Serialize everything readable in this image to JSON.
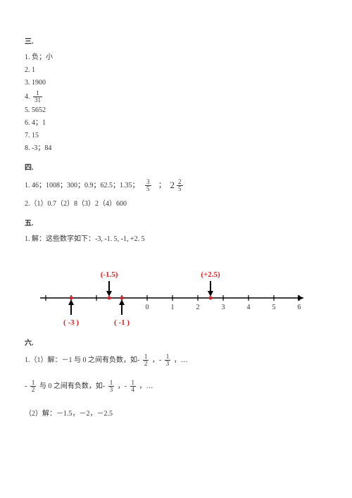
{
  "section3": {
    "title": "三.",
    "items": [
      "1. 负；小",
      "2. 1",
      "3. 1900",
      "4.",
      "5. 5652",
      "6. 4；1",
      "7. 15",
      "8. -3；84"
    ],
    "frac4": {
      "num": "1",
      "den": "31"
    }
  },
  "section4": {
    "title": "四.",
    "line1_pre": "1. 46；1008；300；0.9；62.5；1.35；",
    "frac1": {
      "num": "3",
      "den": "5"
    },
    "sep": "；",
    "mixed": {
      "whole": "2",
      "num": "2",
      "den": "5"
    },
    "line2": "2.（1）0.7（2）8（3）2（4）600"
  },
  "section5": {
    "title": "五.",
    "line1": "1. 解：这些数字如下：-3, -1. 5, -1, +2. 5",
    "numberline": {
      "min": -4,
      "max": 6,
      "ticks": [
        -4,
        -3,
        -2,
        -1,
        0,
        1,
        2,
        3,
        4,
        5,
        6
      ],
      "top_markers": [
        {
          "label": "(-1.5)",
          "value": -1.5,
          "color": "#e02020"
        },
        {
          "label": "(+2.5)",
          "value": 2.5,
          "color": "#e02020"
        }
      ],
      "bottom_markers": [
        {
          "label": "( -3 )",
          "value": -3,
          "color": "#e02020"
        },
        {
          "label": "( -1 )",
          "value": -1,
          "color": "#e02020"
        }
      ],
      "axis_color": "#000",
      "tick_labels": [
        "",
        "",
        "",
        "",
        "0",
        "1",
        "2",
        "3",
        "4",
        "5",
        "6"
      ]
    }
  },
  "section6": {
    "title": "六.",
    "q1_pre": "1.（1）解：－1 与 0 之间有负数，如-",
    "q1_f1": {
      "num": "1",
      "den": "2"
    },
    "q1_mid1": "，-",
    "q1_f2": {
      "num": "1",
      "den": "3"
    },
    "q1_end1": "，…",
    "q1_line2_pre": "-",
    "q1_l2_f1": {
      "num": "1",
      "den": "2"
    },
    "q1_l2_mid": "与 0 之间有负数，如-",
    "q1_l2_f2": {
      "num": "1",
      "den": "3"
    },
    "q1_l2_mid2": "，-",
    "q1_l2_f3": {
      "num": "1",
      "den": "4"
    },
    "q1_l2_end": "，…",
    "q2": "（2）解：－1.5，－2，－2.5"
  }
}
